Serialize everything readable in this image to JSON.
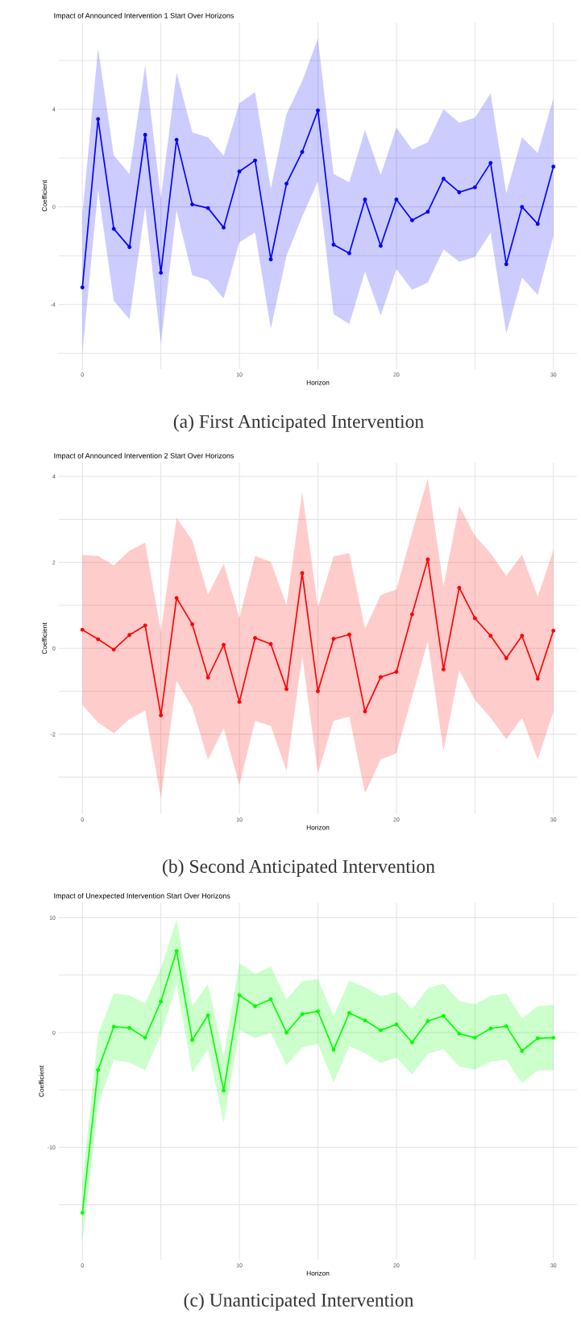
{
  "chart_data": [
    {
      "type": "line",
      "title": "Impact of Announced Intervention 1 Start Over Horizons",
      "xlabel": "Horizon",
      "ylabel": "Coefficient",
      "annotations": [
        "(a) First Anticipated Intervention"
      ],
      "x": [
        0,
        1,
        2,
        3,
        4,
        5,
        6,
        7,
        8,
        9,
        10,
        11,
        12,
        13,
        14,
        15,
        16,
        17,
        18,
        19,
        20,
        21,
        22,
        23,
        24,
        25,
        26,
        27,
        28,
        29,
        30
      ],
      "series": [
        {
          "color": "#0000ff",
          "values": [
            -3.3,
            3.6,
            -0.9,
            -1.65,
            2.95,
            -2.7,
            2.75,
            0.1,
            -0.05,
            -0.85,
            1.45,
            1.9,
            -2.15,
            0.95,
            2.25,
            3.95,
            -1.55,
            -1.9,
            0.3,
            -1.6,
            0.3,
            -0.55,
            -0.2,
            1.15,
            0.6,
            0.8,
            1.8,
            -2.35,
            0.0,
            -0.7,
            1.65
          ],
          "lower": [
            -6.0,
            0.7,
            -3.85,
            -4.6,
            0.0,
            -5.6,
            -0.15,
            -2.8,
            -3.0,
            -3.75,
            -1.45,
            -1.05,
            -5.0,
            -2.0,
            -0.4,
            1.05,
            -4.4,
            -4.8,
            -2.65,
            -4.45,
            -2.55,
            -3.4,
            -3.1,
            -1.75,
            -2.25,
            -2.05,
            -1.05,
            -5.2,
            -2.9,
            -3.6,
            -1.2
          ],
          "upper": [
            -0.3,
            6.5,
            2.1,
            1.35,
            5.8,
            0.35,
            5.5,
            3.05,
            2.85,
            2.1,
            4.25,
            4.7,
            0.75,
            3.8,
            5.15,
            6.9,
            1.35,
            1.0,
            3.15,
            1.3,
            3.25,
            2.35,
            2.65,
            4.0,
            3.45,
            3.65,
            4.65,
            0.55,
            2.85,
            2.2,
            4.45
          ]
        }
      ],
      "xlim": [
        -1.5,
        31.5
      ],
      "ylim": [
        -6.65,
        7.55
      ],
      "xticks": [
        0,
        {
          "value": 5,
          "label": null
        },
        10,
        {
          "value": 15,
          "label": null
        },
        20,
        {
          "value": 25,
          "label": null
        },
        30
      ],
      "yticks": [
        {
          "value": -6,
          "label": null
        },
        -4,
        {
          "value": -2,
          "label": null
        },
        0,
        {
          "value": 2,
          "label": null
        },
        4,
        {
          "value": 6,
          "label": null
        }
      ],
      "grid": true,
      "marker": "circle",
      "line_style": "solid"
    },
    {
      "type": "line",
      "title": "Impact of Announced Intervention 2 Start Over Horizons",
      "xlabel": "Horizon",
      "ylabel": "Coefficient",
      "annotations": [
        "(b) Second Anticipated Intervention"
      ],
      "x": [
        0,
        1,
        2,
        3,
        4,
        5,
        6,
        7,
        8,
        9,
        10,
        11,
        12,
        13,
        14,
        15,
        16,
        17,
        18,
        19,
        20,
        21,
        22,
        23,
        24,
        25,
        26,
        27,
        28,
        29,
        30
      ],
      "series": [
        {
          "color": "#ff0000",
          "values": [
            0.43,
            0.21,
            -0.03,
            0.31,
            0.53,
            -1.56,
            1.17,
            0.56,
            -0.68,
            0.08,
            -1.25,
            0.24,
            0.1,
            -0.95,
            1.75,
            -1.0,
            0.22,
            0.32,
            -1.47,
            -0.67,
            -0.55,
            0.79,
            2.07,
            -0.49,
            1.41,
            0.7,
            0.29,
            -0.23,
            0.29,
            -0.71,
            0.41
          ],
          "lower": [
            -1.32,
            -1.73,
            -1.98,
            -1.65,
            -1.45,
            -3.49,
            -0.76,
            -1.38,
            -2.6,
            -1.86,
            -3.19,
            -1.69,
            -1.81,
            -2.85,
            -0.18,
            -2.91,
            -1.69,
            -1.59,
            -3.37,
            -2.59,
            -2.45,
            -1.12,
            0.16,
            -2.39,
            -0.51,
            -1.2,
            -1.62,
            -2.12,
            -1.62,
            -2.59,
            -1.48
          ],
          "upper": [
            2.17,
            2.15,
            1.93,
            2.27,
            2.46,
            0.39,
            3.04,
            2.51,
            1.25,
            1.97,
            0.71,
            2.15,
            2.01,
            1.01,
            3.64,
            0.95,
            2.14,
            2.22,
            0.45,
            1.24,
            1.37,
            2.7,
            3.95,
            1.45,
            3.31,
            2.62,
            2.21,
            1.69,
            2.18,
            1.2,
            2.29
          ]
        }
      ],
      "xlim": [
        -1.5,
        31.5
      ],
      "ylim": [
        -3.86,
        4.32
      ],
      "xticks": [
        0,
        {
          "value": 5,
          "label": null
        },
        10,
        {
          "value": 15,
          "label": null
        },
        20,
        {
          "value": 25,
          "label": null
        },
        30
      ],
      "yticks": [
        {
          "value": -3,
          "label": null
        },
        -2,
        {
          "value": -1,
          "label": null
        },
        0,
        {
          "value": 1,
          "label": null
        },
        2,
        {
          "value": 3,
          "label": null
        },
        4
      ],
      "grid": true,
      "marker": "circle",
      "line_style": "solid"
    },
    {
      "type": "line",
      "title": "Impact of Unexpected Intervention Start Over Horizons",
      "xlabel": "Horizon",
      "ylabel": "Coefficient",
      "annotations": [
        "(c) Unanticipated Intervention"
      ],
      "x": [
        0,
        1,
        2,
        3,
        4,
        5,
        6,
        7,
        8,
        9,
        10,
        11,
        12,
        13,
        14,
        15,
        16,
        17,
        18,
        19,
        20,
        21,
        22,
        23,
        24,
        25,
        26,
        27,
        28,
        29,
        30
      ],
      "series": [
        {
          "color": "#00ff00",
          "values": [
            -15.7,
            -3.25,
            0.5,
            0.4,
            -0.45,
            2.7,
            7.1,
            -0.65,
            1.5,
            -5.05,
            3.25,
            2.3,
            2.9,
            0.0,
            1.6,
            1.85,
            -1.5,
            1.7,
            1.05,
            0.2,
            0.7,
            -0.85,
            1.0,
            1.45,
            -0.1,
            -0.45,
            0.35,
            0.55,
            -1.6,
            -0.5,
            -0.45
          ],
          "lower": [
            -18.35,
            -6.3,
            -2.4,
            -2.6,
            -3.3,
            -0.2,
            4.2,
            -3.55,
            -1.45,
            -7.85,
            0.25,
            -0.5,
            0.0,
            -2.85,
            -1.3,
            -1.0,
            -4.35,
            -1.2,
            -1.8,
            -2.65,
            -2.2,
            -3.65,
            -1.85,
            -1.45,
            -2.95,
            -3.25,
            -2.55,
            -2.35,
            -4.4,
            -3.3,
            -3.3
          ],
          "upper": [
            -13.0,
            -0.2,
            3.4,
            3.25,
            2.55,
            5.6,
            9.85,
            2.3,
            4.25,
            -2.05,
            6.05,
            5.1,
            5.75,
            2.9,
            4.45,
            4.65,
            1.45,
            4.5,
            3.95,
            3.15,
            3.5,
            2.05,
            3.85,
            4.25,
            2.75,
            2.45,
            3.2,
            3.4,
            1.25,
            2.3,
            2.4
          ]
        }
      ],
      "xlim": [
        -1.5,
        31.5
      ],
      "ylim": [
        -19.8,
        11.3
      ],
      "xticks": [
        0,
        {
          "value": 5,
          "label": null
        },
        10,
        {
          "value": 15,
          "label": null
        },
        20,
        {
          "value": 25,
          "label": null
        },
        30
      ],
      "yticks": [
        {
          "value": -15,
          "label": null
        },
        -10,
        {
          "value": -5,
          "label": null
        },
        0,
        {
          "value": 5,
          "label": null
        },
        10
      ],
      "grid": true,
      "marker": "circle",
      "line_style": "solid"
    }
  ]
}
